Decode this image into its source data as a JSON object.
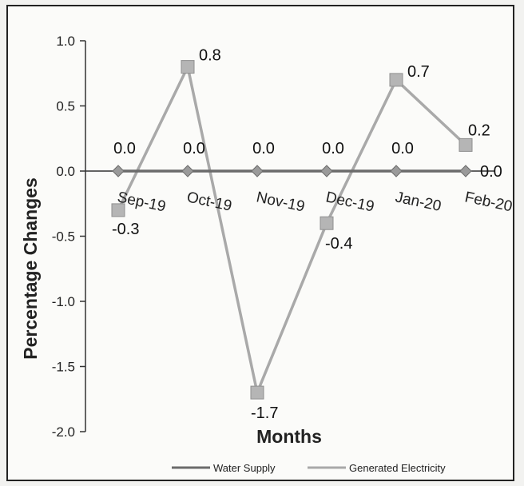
{
  "chart_data": {
    "type": "line",
    "xlabel": "Months",
    "ylabel": "Percentage Changes",
    "categories": [
      "Sep-19",
      "Oct-19",
      "Nov-19",
      "Dec-19",
      "Jan-20",
      "Feb-20"
    ],
    "ylim": [
      -2.0,
      1.0
    ],
    "yticks": [
      "1.0",
      "0.5",
      "0.0",
      "-0.5",
      "-1.0",
      "-1.5",
      "-2.0"
    ],
    "series": [
      {
        "name": "Water Supply",
        "values": [
          0.0,
          0.0,
          0.0,
          0.0,
          0.0,
          0.0
        ],
        "labels": [
          "0.0",
          "0.0",
          "0.0",
          "0.0",
          "0.0",
          "0.0"
        ],
        "marker": "diamond",
        "color": "#6b6b6b"
      },
      {
        "name": "Generated Electricity",
        "values": [
          -0.3,
          0.8,
          -1.7,
          -0.4,
          0.7,
          0.2
        ],
        "labels": [
          "-0.3",
          "0.8",
          "-1.7",
          "-0.4",
          "0.7",
          "0.2"
        ],
        "marker": "square",
        "color": "#a9a9a9"
      }
    ],
    "grid": false,
    "legend_position": "bottom"
  }
}
